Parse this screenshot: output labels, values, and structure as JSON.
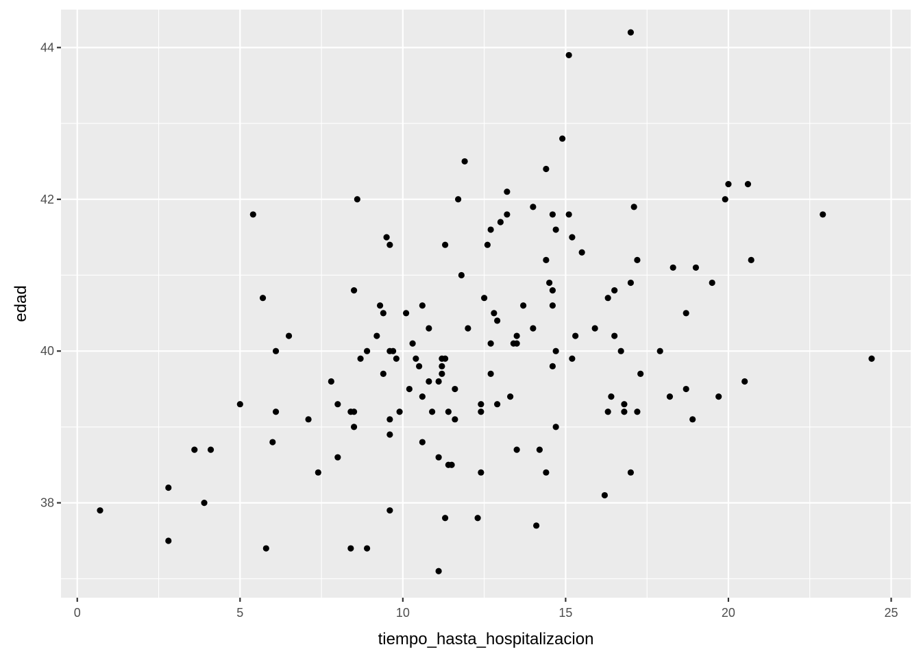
{
  "chart_data": {
    "type": "scatter",
    "title": "",
    "xlabel": "tiempo_hasta_hospitalizacion",
    "ylabel": "edad",
    "xlim": [
      -0.5,
      25.6
    ],
    "ylim": [
      36.75,
      44.5
    ],
    "xticks": [
      0,
      5,
      10,
      15,
      20,
      25
    ],
    "yticks": [
      38,
      40,
      42,
      44
    ],
    "grid": true,
    "legend": "none",
    "colors": {
      "panel": "#EBEBEB",
      "grid": "#FFFFFF",
      "point": "#000000"
    },
    "points": [
      [
        0.7,
        37.9
      ],
      [
        2.8,
        38.2
      ],
      [
        2.8,
        37.5
      ],
      [
        3.6,
        38.7
      ],
      [
        3.9,
        38.0
      ],
      [
        4.1,
        38.7
      ],
      [
        5.0,
        39.3
      ],
      [
        5.4,
        41.8
      ],
      [
        5.7,
        40.7
      ],
      [
        5.8,
        37.4
      ],
      [
        6.0,
        38.8
      ],
      [
        6.1,
        40.0
      ],
      [
        6.1,
        39.2
      ],
      [
        6.5,
        40.2
      ],
      [
        7.1,
        39.1
      ],
      [
        7.4,
        38.4
      ],
      [
        7.8,
        39.6
      ],
      [
        8.0,
        39.3
      ],
      [
        8.0,
        38.6
      ],
      [
        8.4,
        39.2
      ],
      [
        8.4,
        37.4
      ],
      [
        8.5,
        39.2
      ],
      [
        8.5,
        39.0
      ],
      [
        8.5,
        40.8
      ],
      [
        8.6,
        42.0
      ],
      [
        8.7,
        39.9
      ],
      [
        8.9,
        40.0
      ],
      [
        8.9,
        37.4
      ],
      [
        9.2,
        40.2
      ],
      [
        9.3,
        40.6
      ],
      [
        9.4,
        40.5
      ],
      [
        9.4,
        39.7
      ],
      [
        9.5,
        41.5
      ],
      [
        9.6,
        41.4
      ],
      [
        9.6,
        40.0
      ],
      [
        9.6,
        39.1
      ],
      [
        9.6,
        38.9
      ],
      [
        9.6,
        37.9
      ],
      [
        9.7,
        40.0
      ],
      [
        9.8,
        39.9
      ],
      [
        9.9,
        39.2
      ],
      [
        10.1,
        40.5
      ],
      [
        10.2,
        39.5
      ],
      [
        10.3,
        40.1
      ],
      [
        10.4,
        39.9
      ],
      [
        10.5,
        39.8
      ],
      [
        10.6,
        40.6
      ],
      [
        10.6,
        39.4
      ],
      [
        10.6,
        38.8
      ],
      [
        10.8,
        40.3
      ],
      [
        10.8,
        39.6
      ],
      [
        10.9,
        39.2
      ],
      [
        11.1,
        39.6
      ],
      [
        11.1,
        38.6
      ],
      [
        11.1,
        37.1
      ],
      [
        11.2,
        39.9
      ],
      [
        11.2,
        39.8
      ],
      [
        11.2,
        39.7
      ],
      [
        11.3,
        41.4
      ],
      [
        11.3,
        39.9
      ],
      [
        11.3,
        37.8
      ],
      [
        11.4,
        39.2
      ],
      [
        11.4,
        38.5
      ],
      [
        11.5,
        38.5
      ],
      [
        11.6,
        39.5
      ],
      [
        11.6,
        39.1
      ],
      [
        11.7,
        42.0
      ],
      [
        11.8,
        41.0
      ],
      [
        11.9,
        42.5
      ],
      [
        12.0,
        40.3
      ],
      [
        12.3,
        37.8
      ],
      [
        12.4,
        39.3
      ],
      [
        12.4,
        39.2
      ],
      [
        12.4,
        38.4
      ],
      [
        12.5,
        40.7
      ],
      [
        12.6,
        41.4
      ],
      [
        12.7,
        41.6
      ],
      [
        12.7,
        40.1
      ],
      [
        12.7,
        39.7
      ],
      [
        12.8,
        40.5
      ],
      [
        12.9,
        40.4
      ],
      [
        12.9,
        39.3
      ],
      [
        13.0,
        41.7
      ],
      [
        13.2,
        42.1
      ],
      [
        13.2,
        41.8
      ],
      [
        13.3,
        39.4
      ],
      [
        13.4,
        40.1
      ],
      [
        13.5,
        40.2
      ],
      [
        13.5,
        40.1
      ],
      [
        13.5,
        38.7
      ],
      [
        13.7,
        40.6
      ],
      [
        14.0,
        41.9
      ],
      [
        14.0,
        40.3
      ],
      [
        14.1,
        37.7
      ],
      [
        14.2,
        38.7
      ],
      [
        14.4,
        42.4
      ],
      [
        14.4,
        41.2
      ],
      [
        14.4,
        38.4
      ],
      [
        14.5,
        40.9
      ],
      [
        14.6,
        41.8
      ],
      [
        14.6,
        40.8
      ],
      [
        14.6,
        40.6
      ],
      [
        14.6,
        39.8
      ],
      [
        14.7,
        41.6
      ],
      [
        14.7,
        40.0
      ],
      [
        14.7,
        39.0
      ],
      [
        14.9,
        42.8
      ],
      [
        15.1,
        43.9
      ],
      [
        15.1,
        41.8
      ],
      [
        15.2,
        41.5
      ],
      [
        15.2,
        39.9
      ],
      [
        15.3,
        40.2
      ],
      [
        15.5,
        41.3
      ],
      [
        15.9,
        40.3
      ],
      [
        16.2,
        38.1
      ],
      [
        16.3,
        40.7
      ],
      [
        16.3,
        39.2
      ],
      [
        16.4,
        39.4
      ],
      [
        16.5,
        40.8
      ],
      [
        16.5,
        40.2
      ],
      [
        16.7,
        40.0
      ],
      [
        16.8,
        39.3
      ],
      [
        16.8,
        39.2
      ],
      [
        17.0,
        44.2
      ],
      [
        17.0,
        40.9
      ],
      [
        17.0,
        38.4
      ],
      [
        17.1,
        41.9
      ],
      [
        17.2,
        41.2
      ],
      [
        17.2,
        39.2
      ],
      [
        17.3,
        39.7
      ],
      [
        17.9,
        40.0
      ],
      [
        18.2,
        39.4
      ],
      [
        18.3,
        41.1
      ],
      [
        18.7,
        40.5
      ],
      [
        18.7,
        39.5
      ],
      [
        18.9,
        39.1
      ],
      [
        19.0,
        41.1
      ],
      [
        19.5,
        40.9
      ],
      [
        19.7,
        39.4
      ],
      [
        19.9,
        42.0
      ],
      [
        20.0,
        42.2
      ],
      [
        20.5,
        39.6
      ],
      [
        20.6,
        42.2
      ],
      [
        20.7,
        41.2
      ],
      [
        22.9,
        41.8
      ],
      [
        24.4,
        39.9
      ]
    ]
  }
}
